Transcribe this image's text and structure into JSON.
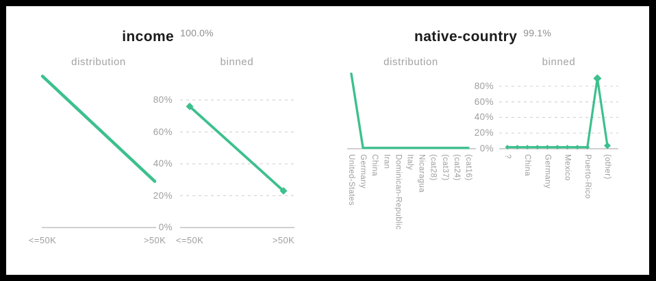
{
  "accent_color": "#3cc08e",
  "axis_color": "#b5b5b5",
  "gridline_color": "#d5d5d5",
  "title_color": "#1b1b1b",
  "label_color": "#9e9e9e",
  "panels": [
    {
      "title": "income",
      "percent": "100.0%",
      "y_axis_labels": [
        "80%",
        "60%",
        "40%",
        "20%",
        "0%"
      ]
    },
    {
      "title": "native-country",
      "percent": "99.1%",
      "y_axis_labels": [
        "80%",
        "60%",
        "40%",
        "20%",
        "0%"
      ]
    }
  ],
  "chart_data": [
    {
      "id": "income-distribution",
      "panel": "income",
      "type": "line",
      "title": "distribution",
      "categories": [
        "<=50K",
        ">50K"
      ],
      "values": [
        95,
        29
      ],
      "unit": "%",
      "ylim": [
        0,
        100
      ],
      "grid": false,
      "markers": false,
      "legend": "none"
    },
    {
      "id": "income-binned",
      "panel": "income",
      "type": "line",
      "title": "binned",
      "categories": [
        "<=50K",
        ">50K"
      ],
      "values": [
        76,
        23
      ],
      "unit": "%",
      "ylim": [
        0,
        100
      ],
      "y_ticks": [
        "0%",
        "20%",
        "40%",
        "60%",
        "80%"
      ],
      "grid": true,
      "markers": true,
      "legend": "none"
    },
    {
      "id": "native-country-distribution",
      "panel": "native-country",
      "type": "line",
      "title": "distribution",
      "categories": [
        "United-States",
        "Germany",
        "China",
        "Iran",
        "Dominican-Republic",
        "Italy",
        "Nicaragua",
        "(cat28)",
        "(cat37)",
        "(cat24)",
        "(cat16)"
      ],
      "values": [
        96,
        1,
        1,
        1,
        1,
        1,
        1,
        1,
        1,
        1,
        1
      ],
      "unit": "%",
      "ylim": [
        0,
        100
      ],
      "grid": false,
      "markers": false,
      "legend": "none"
    },
    {
      "id": "native-country-binned",
      "panel": "native-country",
      "type": "line",
      "title": "binned",
      "categories": [
        "?",
        "",
        "China",
        "",
        "Germany",
        "",
        "Mexico",
        "",
        "Puerto-Rico",
        "",
        "(other)"
      ],
      "values": [
        2,
        2,
        2,
        2,
        2,
        2,
        2,
        2,
        2,
        90,
        4
      ],
      "unit": "%",
      "ylim": [
        0,
        100
      ],
      "y_ticks": [
        "0%",
        "20%",
        "40%",
        "60%",
        "80%"
      ],
      "grid": true,
      "markers": true,
      "legend": "none"
    }
  ]
}
